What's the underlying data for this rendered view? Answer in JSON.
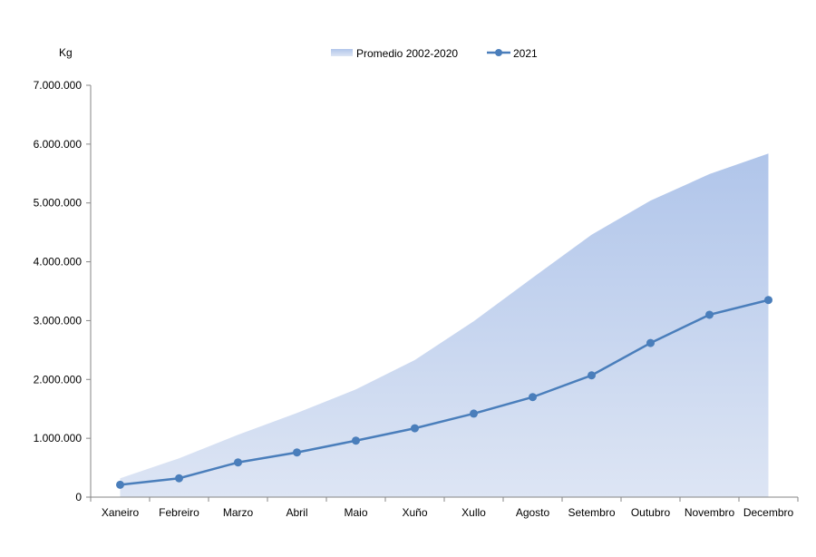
{
  "chart_data": {
    "type": "line",
    "ylabel": "Kg",
    "ylim": [
      0,
      7000000
    ],
    "yticks": [
      0,
      1000000,
      2000000,
      3000000,
      4000000,
      5000000,
      6000000,
      7000000
    ],
    "ytick_labels": [
      "0",
      "1.000.000",
      "2.000.000",
      "3.000.000",
      "4.000.000",
      "5.000.000",
      "6.000.000",
      "7.000.000"
    ],
    "categories": [
      "Xaneiro",
      "Febreiro",
      "Marzo",
      "Abril",
      "Maio",
      "Xuño",
      "Xullo",
      "Agosto",
      "Setembro",
      "Outubro",
      "Novembro",
      "Decembro"
    ],
    "legend_position": "top",
    "grid": false,
    "series": [
      {
        "name": "Promedio 2002-2020",
        "type": "area",
        "color": "#b4c7e7",
        "values": [
          320000,
          660000,
          1060000,
          1430000,
          1830000,
          2330000,
          2990000,
          3730000,
          4460000,
          5040000,
          5490000,
          5840000
        ]
      },
      {
        "name": "2021",
        "type": "line",
        "color": "#4a7ebb",
        "values": [
          210000,
          320000,
          590000,
          760000,
          960000,
          1170000,
          1420000,
          1700000,
          2070000,
          2620000,
          3100000,
          3350000
        ]
      }
    ]
  }
}
